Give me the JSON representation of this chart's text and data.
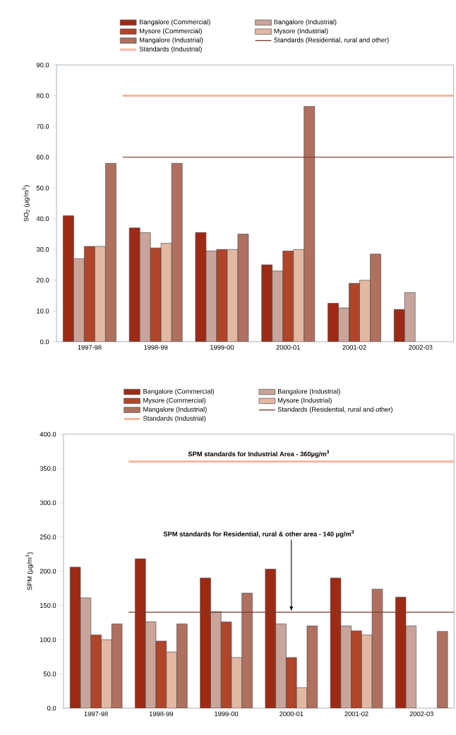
{
  "chart_data": [
    {
      "type": "bar",
      "ylabel": "SO$_{2}$ (µg/m$^{3}$)",
      "categories": [
        "1997-98",
        "1998-99",
        "1999-00",
        "2000-01",
        "2001-02",
        "2002-03"
      ],
      "series": [
        {
          "name": "Bangalore (Commercial)",
          "color": "#9e2a14",
          "values": [
            41,
            37,
            35.5,
            25,
            12.5,
            10.5
          ]
        },
        {
          "name": "Bangalore (Industrial)",
          "color": "#c9a49a",
          "values": [
            27,
            35.5,
            29.5,
            23,
            11,
            16
          ]
        },
        {
          "name": "Mysore (Commercial)",
          "color": "#b0452a",
          "values": [
            31,
            30.5,
            30,
            29.5,
            19,
            null
          ]
        },
        {
          "name": "Mysore (Industrial)",
          "color": "#e3b8a2",
          "values": [
            31,
            32,
            30,
            30,
            20,
            null
          ]
        },
        {
          "name": "Mangalore (Industrial)",
          "color": "#b07060",
          "values": [
            58,
            58,
            35,
            76.5,
            28.5,
            null
          ]
        }
      ],
      "ref_lines": [
        {
          "axis": "y",
          "value": 60,
          "label": "Standards (Residential, rural and other)",
          "color": "#7a3a2a"
        },
        {
          "axis": "y",
          "value": 80,
          "label": "Standards (Industrial)",
          "color": "#f7b49a"
        }
      ],
      "ylim": [
        0,
        90
      ],
      "yticks": [
        {
          "value": 0,
          "label": "0.0"
        },
        {
          "value": 10,
          "label": "10.0"
        },
        {
          "value": 20,
          "label": "20.0"
        },
        {
          "value": 30,
          "label": "30.0"
        },
        {
          "value": 40,
          "label": "40.0"
        },
        {
          "value": 50,
          "label": "50.0"
        },
        {
          "value": 60,
          "label": "60.0"
        },
        {
          "value": 70,
          "label": "70.0"
        },
        {
          "value": 80,
          "label": "80.0"
        },
        {
          "value": 90,
          "label": "90.0"
        }
      ],
      "legend": "top"
    },
    {
      "type": "bar",
      "ylabel": "SPM (µg/m$^{3}$)",
      "categories": [
        "1997-98",
        "1998-99",
        "1999-00",
        "2000-01",
        "2001-02",
        "2002-03"
      ],
      "series": [
        {
          "name": "Bangalore (Commercial)",
          "color": "#9e2a14",
          "values": [
            206,
            218,
            190,
            203,
            190,
            162
          ]
        },
        {
          "name": "Bangalore (Industrial)",
          "color": "#c9a49a",
          "values": [
            161,
            126,
            141,
            123,
            120,
            120
          ]
        },
        {
          "name": "Mysore (Commercial)",
          "color": "#b0452a",
          "values": [
            107,
            98,
            126,
            74,
            113,
            null
          ]
        },
        {
          "name": "Mysore (Industrial)",
          "color": "#e3b8a2",
          "values": [
            100,
            82,
            74,
            30,
            107,
            null
          ]
        },
        {
          "name": "Mangalore (Industrial)",
          "color": "#b07060",
          "values": [
            123,
            123,
            168,
            120,
            174,
            112
          ]
        }
      ],
      "ref_lines": [
        {
          "axis": "y",
          "value": 140,
          "label": "Standards (Residential, rural and other)",
          "color": "#7a3a2a"
        },
        {
          "axis": "y",
          "value": 360,
          "label": "Standards (Industrial)",
          "color": "#f7b49a"
        }
      ],
      "annotations": [
        {
          "text": "SPM standards for Industrial Area - 360µg/m$^{3}$",
          "y": 360
        },
        {
          "text": "SPM standards for Residential, rural & other area - 140 µg/m$^{3}$",
          "x": "2000-01",
          "y": 140
        }
      ],
      "ylim": [
        0,
        400
      ],
      "yticks": [
        {
          "value": 0,
          "label": "0.0"
        },
        {
          "value": 50,
          "label": "50.0"
        },
        {
          "value": 100,
          "label": "100.0"
        },
        {
          "value": 150,
          "label": "150.0"
        },
        {
          "value": 200,
          "label": "200.0"
        },
        {
          "value": 250,
          "label": "250.0"
        },
        {
          "value": 300,
          "label": "300.0"
        },
        {
          "value": 350,
          "label": "350.0"
        },
        {
          "value": 400,
          "label": "400.0"
        }
      ],
      "legend": "top"
    }
  ]
}
